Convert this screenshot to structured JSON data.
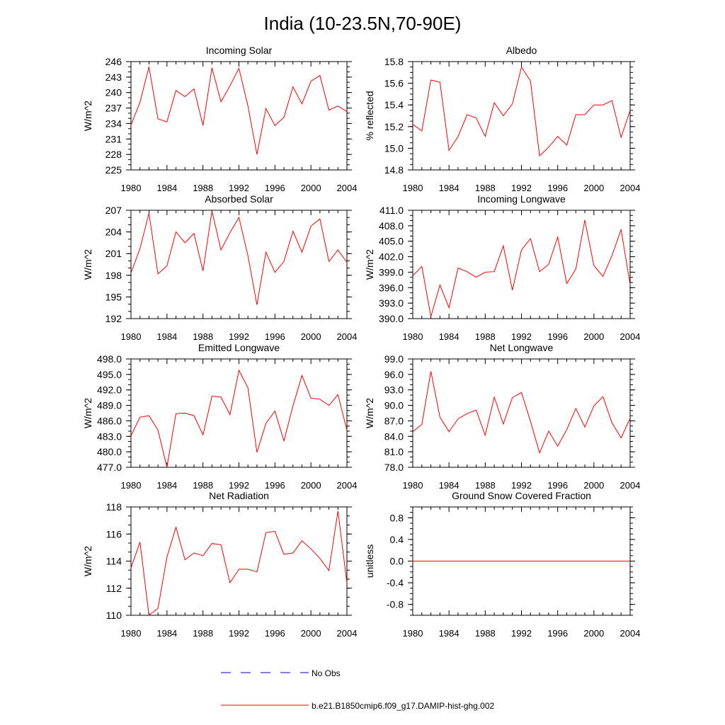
{
  "title": "India (10-23.5N,70-90E)",
  "colors": {
    "model": "#ff0000",
    "obs": "#0000cc",
    "axis": "#000000"
  },
  "legend": {
    "placement": "bottom-center",
    "entries": [
      {
        "label": "No Obs",
        "style": "dashed",
        "color": "#0000cc"
      },
      {
        "label": "b.e21.B1850cmip6.f09_g17.DAMIP-hist-ghg.002",
        "style": "solid",
        "color": "#ff0000"
      }
    ]
  },
  "chart_data": [
    {
      "type": "line",
      "title": "Incoming Solar",
      "ylabel": "W/m^2",
      "xlim": [
        1980,
        2004
      ],
      "ylim": [
        225,
        246
      ],
      "xticks": [
        1980,
        1984,
        1988,
        1992,
        1996,
        2000,
        2004
      ],
      "xtick_labels": [
        "1980",
        "1984",
        "1988",
        "1992",
        "1996",
        "2000",
        "2004"
      ],
      "yticks": [
        225,
        228,
        231,
        234,
        237,
        240,
        243,
        246
      ],
      "ytick_labels": [
        "225",
        "228",
        "231",
        "234",
        "237",
        "240",
        "243",
        "246"
      ],
      "series": [
        {
          "name": "b.e21.B1850cmip6.f09_g17.DAMIP-hist-ghg.002",
          "x": [
            1980,
            1981,
            1982,
            1983,
            1984,
            1985,
            1986,
            1987,
            1988,
            1989,
            1990,
            1991,
            1992,
            1993,
            1994,
            1995,
            1996,
            1997,
            1998,
            1999,
            2000,
            2001,
            2002,
            2003,
            2004
          ],
          "y": [
            233.7,
            238.1,
            245.0,
            234.9,
            234.3,
            240.4,
            239.2,
            240.7,
            233.6,
            244.8,
            238.2,
            241.3,
            244.7,
            237.4,
            228.0,
            236.9,
            233.6,
            235.2,
            241.1,
            237.8,
            242.2,
            243.3,
            236.6,
            237.4,
            236.3
          ]
        }
      ]
    },
    {
      "type": "line",
      "title": "Albedo",
      "ylabel": "% reflected",
      "xlim": [
        1980,
        2004
      ],
      "ylim": [
        14.8,
        15.8
      ],
      "xticks": [
        1980,
        1984,
        1988,
        1992,
        1996,
        2000,
        2004
      ],
      "xtick_labels": [
        "1980",
        "1984",
        "1988",
        "1992",
        "1996",
        "2000",
        "2004"
      ],
      "yticks": [
        14.8,
        15.0,
        15.2,
        15.4,
        15.6,
        15.8
      ],
      "ytick_labels": [
        "14.8",
        "15.0",
        "15.2",
        "15.4",
        "15.6",
        "15.8"
      ],
      "series": [
        {
          "name": "b.e21.B1850cmip6.f09_g17.DAMIP-hist-ghg.002",
          "x": [
            1980,
            1981,
            1982,
            1983,
            1984,
            1985,
            1986,
            1987,
            1988,
            1989,
            1990,
            1991,
            1992,
            1993,
            1994,
            1995,
            1996,
            1997,
            1998,
            1999,
            2000,
            2001,
            2002,
            2003,
            2004
          ],
          "y": [
            15.22,
            15.16,
            15.63,
            15.61,
            14.98,
            15.11,
            15.31,
            15.28,
            15.11,
            15.42,
            15.3,
            15.41,
            15.75,
            15.62,
            14.93,
            15.01,
            15.11,
            15.03,
            15.31,
            15.31,
            15.4,
            15.4,
            15.44,
            15.1,
            15.35
          ]
        }
      ]
    },
    {
      "type": "line",
      "title": "Absorbed Solar",
      "ylabel": "W/m^2",
      "xlim": [
        1980,
        2004
      ],
      "ylim": [
        192,
        207
      ],
      "xticks": [
        1980,
        1984,
        1988,
        1992,
        1996,
        2000,
        2004
      ],
      "xtick_labels": [
        "1980",
        "1984",
        "1988",
        "1992",
        "1996",
        "2000",
        "2004"
      ],
      "yticks": [
        192,
        195,
        198,
        201,
        204,
        207
      ],
      "ytick_labels": [
        "192",
        "195",
        "198",
        "201",
        "204",
        "207"
      ],
      "series": [
        {
          "name": "b.e21.B1850cmip6.f09_g17.DAMIP-hist-ghg.002",
          "x": [
            1980,
            1981,
            1982,
            1983,
            1984,
            1985,
            1986,
            1987,
            1988,
            1989,
            1990,
            1991,
            1992,
            1993,
            1994,
            1995,
            1996,
            1997,
            1998,
            1999,
            2000,
            2001,
            2002,
            2003,
            2004
          ],
          "y": [
            198.3,
            201.7,
            206.6,
            198.2,
            199.3,
            204.0,
            202.5,
            203.8,
            198.6,
            206.9,
            201.5,
            203.9,
            206.0,
            200.7,
            193.9,
            201.2,
            198.4,
            199.9,
            204.1,
            201.2,
            204.8,
            205.8,
            199.9,
            201.5,
            199.8
          ]
        }
      ]
    },
    {
      "type": "line",
      "title": "Incoming Longwave",
      "ylabel": "W/m^2",
      "xlim": [
        1980,
        2004
      ],
      "ylim": [
        390,
        411
      ],
      "xticks": [
        1980,
        1984,
        1988,
        1992,
        1996,
        2000,
        2004
      ],
      "xtick_labels": [
        "1980",
        "1984",
        "1988",
        "1992",
        "1996",
        "2000",
        "2004"
      ],
      "yticks": [
        390,
        393,
        396,
        399,
        402,
        405,
        408,
        411
      ],
      "ytick_labels": [
        "390.0",
        "393.0",
        "396.0",
        "399.0",
        "402.0",
        "405.0",
        "408.0",
        "411.0"
      ],
      "series": [
        {
          "name": "b.e21.B1850cmip6.f09_g17.DAMIP-hist-ghg.002",
          "x": [
            1980,
            1981,
            1982,
            1983,
            1984,
            1985,
            1986,
            1987,
            1988,
            1989,
            1990,
            1991,
            1992,
            1993,
            1994,
            1995,
            1996,
            1997,
            1998,
            1999,
            2000,
            2001,
            2002,
            2003,
            2004
          ],
          "y": [
            398.3,
            400.1,
            390.4,
            396.5,
            392.1,
            399.8,
            399.1,
            398.0,
            399.0,
            399.1,
            404.1,
            395.5,
            403.3,
            405.5,
            399.1,
            400.5,
            405.8,
            396.8,
            399.6,
            409.1,
            400.3,
            398.2,
            402.2,
            407.3,
            396.6
          ]
        }
      ]
    },
    {
      "type": "line",
      "title": "Emitted Longwave",
      "ylabel": "W/m^2",
      "xlim": [
        1980,
        2004
      ],
      "ylim": [
        477,
        498
      ],
      "xticks": [
        1980,
        1984,
        1988,
        1992,
        1996,
        2000,
        2004
      ],
      "xtick_labels": [
        "1980",
        "1984",
        "1988",
        "1992",
        "1996",
        "2000",
        "2004"
      ],
      "yticks": [
        477,
        480,
        483,
        486,
        489,
        492,
        495,
        498
      ],
      "ytick_labels": [
        "477.0",
        "480.0",
        "483.0",
        "486.0",
        "489.0",
        "492.0",
        "495.0",
        "498.0"
      ],
      "series": [
        {
          "name": "b.e21.B1850cmip6.f09_g17.DAMIP-hist-ghg.002",
          "x": [
            1980,
            1981,
            1982,
            1983,
            1984,
            1985,
            1986,
            1987,
            1988,
            1989,
            1990,
            1991,
            1992,
            1993,
            1994,
            1995,
            1996,
            1997,
            1998,
            1999,
            2000,
            2001,
            2002,
            2003,
            2004
          ],
          "y": [
            483.1,
            486.7,
            487.0,
            484.2,
            477.0,
            487.4,
            487.5,
            487.0,
            483.3,
            490.8,
            490.6,
            487.2,
            495.8,
            492.4,
            479.9,
            485.5,
            487.9,
            482.1,
            488.9,
            494.8,
            490.4,
            490.2,
            489.0,
            491.1,
            484.2
          ]
        }
      ]
    },
    {
      "type": "line",
      "title": "Net Longwave",
      "ylabel": "W/m^2",
      "xlim": [
        1980,
        2004
      ],
      "ylim": [
        78,
        99
      ],
      "xticks": [
        1980,
        1984,
        1988,
        1992,
        1996,
        2000,
        2004
      ],
      "xtick_labels": [
        "1980",
        "1984",
        "1988",
        "1992",
        "1996",
        "2000",
        "2004"
      ],
      "yticks": [
        78,
        81,
        84,
        87,
        90,
        93,
        96,
        99
      ],
      "ytick_labels": [
        "78.0",
        "81.0",
        "84.0",
        "87.0",
        "90.0",
        "93.0",
        "96.0",
        "99.0"
      ],
      "series": [
        {
          "name": "b.e21.B1850cmip6.f09_g17.DAMIP-hist-ghg.002",
          "x": [
            1980,
            1981,
            1982,
            1983,
            1984,
            1985,
            1986,
            1987,
            1988,
            1989,
            1990,
            1991,
            1992,
            1993,
            1994,
            1995,
            1996,
            1997,
            1998,
            1999,
            2000,
            2001,
            2002,
            2003,
            2004
          ],
          "y": [
            84.9,
            86.3,
            96.6,
            87.7,
            84.9,
            87.4,
            88.4,
            89.1,
            84.2,
            91.6,
            86.4,
            91.5,
            92.5,
            86.9,
            80.8,
            85.0,
            82.1,
            85.3,
            89.4,
            85.8,
            89.9,
            91.7,
            86.6,
            83.7,
            87.5
          ]
        }
      ]
    },
    {
      "type": "line",
      "title": "Net Radiation",
      "ylabel": "W/m^2",
      "xlim": [
        1980,
        2004
      ],
      "ylim": [
        110,
        118
      ],
      "xticks": [
        1980,
        1984,
        1988,
        1992,
        1996,
        2000,
        2004
      ],
      "xtick_labels": [
        "1980",
        "1984",
        "1988",
        "1992",
        "1996",
        "2000",
        "2004"
      ],
      "yticks": [
        110,
        112,
        114,
        116,
        118
      ],
      "ytick_labels": [
        "110",
        "112",
        "114",
        "116",
        "118"
      ],
      "series": [
        {
          "name": "b.e21.B1850cmip6.f09_g17.DAMIP-hist-ghg.002",
          "x": [
            1980,
            1981,
            1982,
            1983,
            1984,
            1985,
            1986,
            1987,
            1988,
            1989,
            1990,
            1991,
            1992,
            1993,
            1994,
            1995,
            1996,
            1997,
            1998,
            1999,
            2000,
            2001,
            2002,
            2003,
            2004
          ],
          "y": [
            113.5,
            115.4,
            110.0,
            110.5,
            114.3,
            116.5,
            114.1,
            114.6,
            114.4,
            115.3,
            115.2,
            112.4,
            113.4,
            113.4,
            113.2,
            116.1,
            116.2,
            114.5,
            114.6,
            115.5,
            114.9,
            114.2,
            113.3,
            117.7,
            112.4
          ]
        }
      ]
    },
    {
      "type": "line",
      "title": "Ground Snow Covered Fraction",
      "ylabel": "unitless",
      "xlim": [
        1980,
        2004
      ],
      "ylim": [
        -1.0,
        1.0
      ],
      "xticks": [
        1980,
        1984,
        1988,
        1992,
        1996,
        2000,
        2004
      ],
      "xtick_labels": [
        "1980",
        "1984",
        "1988",
        "1992",
        "1996",
        "2000",
        "2004"
      ],
      "yticks": [
        -0.8,
        -0.4,
        0.0,
        0.4,
        0.8
      ],
      "ytick_labels": [
        "-0.8",
        "-0.4",
        "0.0",
        "0.4",
        "0.8"
      ],
      "series": [
        {
          "name": "b.e21.B1850cmip6.f09_g17.DAMIP-hist-ghg.002",
          "x": [
            1980,
            1981,
            1982,
            1983,
            1984,
            1985,
            1986,
            1987,
            1988,
            1989,
            1990,
            1991,
            1992,
            1993,
            1994,
            1995,
            1996,
            1997,
            1998,
            1999,
            2000,
            2001,
            2002,
            2003,
            2004
          ],
          "y": [
            0,
            0,
            0,
            0,
            0,
            0,
            0,
            0,
            0,
            0,
            0,
            0,
            0,
            0,
            0,
            0,
            0,
            0,
            0,
            0,
            0,
            0,
            0,
            0,
            0
          ]
        }
      ]
    }
  ]
}
